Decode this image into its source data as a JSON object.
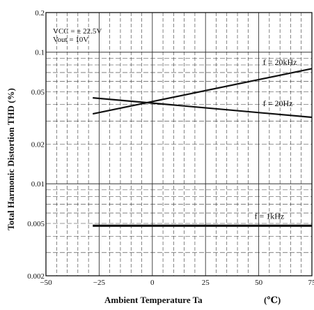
{
  "chart_data": {
    "type": "line",
    "title": "",
    "xlabel": "Ambient Temperature Ta",
    "xlabel_unit": "(℃)",
    "ylabel": "Total Harmonic Distortion THD (%)",
    "x_scale": "linear",
    "y_scale": "log",
    "xlim": [
      -50,
      75
    ],
    "ylim": [
      0.002,
      0.2
    ],
    "x_ticks": [
      -50,
      -25,
      0,
      25,
      50,
      75
    ],
    "x_tick_labels": [
      "−50",
      "−25",
      "0",
      "25",
      "50",
      "75"
    ],
    "y_ticks": [
      0.002,
      0.005,
      0.01,
      0.02,
      0.05,
      0.1,
      0.2
    ],
    "y_tick_labels": [
      "0.002",
      "0.005",
      "0.01",
      "0.02",
      "0.05",
      "0.1",
      "0.2"
    ],
    "grid": true,
    "conditions": [
      "VCC = ± 22.5V",
      "Vout = 10V"
    ],
    "series": [
      {
        "name": "f = 20kHz",
        "x": [
          -28,
          75
        ],
        "y": [
          0.034,
          0.075
        ]
      },
      {
        "name": "f = 20Hz",
        "x": [
          -28,
          75
        ],
        "y": [
          0.045,
          0.032
        ]
      },
      {
        "name": "f = 1kHz",
        "x": [
          -28,
          75
        ],
        "y": [
          0.0048,
          0.0048
        ]
      }
    ],
    "colors": {
      "line": "#111111",
      "grid": "#333333"
    }
  }
}
